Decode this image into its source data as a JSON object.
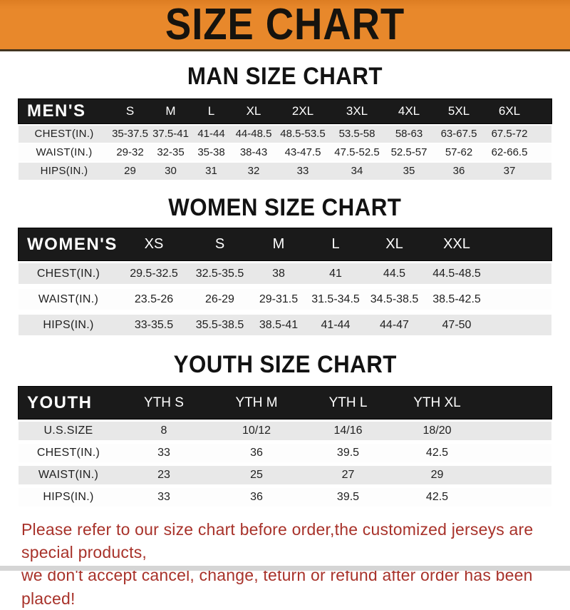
{
  "banner": {
    "title": "SIZE CHART"
  },
  "colors": {
    "banner_bg": "#e8882b",
    "bar_bg": "#1a1a1a",
    "row_alt_bg": "#e8e8e8",
    "footer_text": "#a8322a"
  },
  "sections": [
    {
      "title": "MAN SIZE CHART",
      "header_label": "MEN'S",
      "columns": [
        "S",
        "M",
        "L",
        "XL",
        "2XL",
        "3XL",
        "4XL",
        "5XL",
        "6XL"
      ],
      "rows": [
        {
          "label": "CHEST(IN.)",
          "values": [
            "35-37.5",
            "37.5-41",
            "41-44",
            "44-48.5",
            "48.5-53.5",
            "53.5-58",
            "58-63",
            "63-67.5",
            "67.5-72"
          ]
        },
        {
          "label": "WAIST(IN.)",
          "values": [
            "29-32",
            "32-35",
            "35-38",
            "38-43",
            "43-47.5",
            "47.5-52.5",
            "52.5-57",
            "57-62",
            "62-66.5"
          ]
        },
        {
          "label": "HIPS(IN.)",
          "values": [
            "29",
            "30",
            "31",
            "32",
            "33",
            "34",
            "35",
            "36",
            "37"
          ]
        }
      ]
    },
    {
      "title": "WOMEN SIZE CHART",
      "header_label": "WOMEN'S",
      "columns": [
        "XS",
        "S",
        "M",
        "L",
        "XL",
        "XXL"
      ],
      "rows": [
        {
          "label": "CHEST(IN.)",
          "values": [
            "29.5-32.5",
            "32.5-35.5",
            "38",
            "41",
            "44.5",
            "44.5-48.5"
          ]
        },
        {
          "label": "WAIST(IN.)",
          "values": [
            "23.5-26",
            "26-29",
            "29-31.5",
            "31.5-34.5",
            "34.5-38.5",
            "38.5-42.5"
          ]
        },
        {
          "label": "HIPS(IN.)",
          "values": [
            "33-35.5",
            "35.5-38.5",
            "38.5-41",
            "41-44",
            "44-47",
            "47-50"
          ]
        }
      ]
    },
    {
      "title": "YOUTH SIZE CHART",
      "header_label": "YOUTH",
      "columns": [
        "YTH S",
        "YTH M",
        "YTH L",
        "YTH XL"
      ],
      "rows": [
        {
          "label": "U.S.SIZE",
          "values": [
            "8",
            "10/12",
            "14/16",
            "18/20"
          ]
        },
        {
          "label": "CHEST(IN.)",
          "values": [
            "33",
            "36",
            "39.5",
            "42.5"
          ]
        },
        {
          "label": "WAIST(IN.)",
          "values": [
            "23",
            "25",
            "27",
            "29"
          ]
        },
        {
          "label": "HIPS(IN.)",
          "values": [
            "33",
            "36",
            "39.5",
            "42.5"
          ]
        }
      ]
    }
  ],
  "footer": {
    "line1": "Please refer to our size chart before order,the customized jerseys are special products,",
    "line2": "we don't accept cancel, change, teturn or refund after order has been placed!"
  }
}
